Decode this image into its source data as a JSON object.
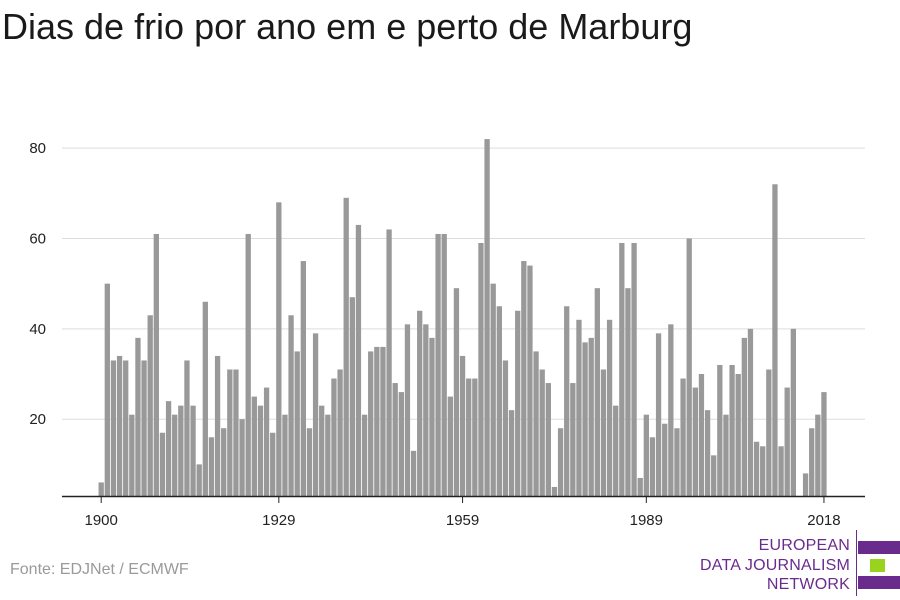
{
  "title": "Dias de frio por ano em e perto de Marburg",
  "source": "Fonte: EDJNet / ECMWF",
  "logo": {
    "line1": "EUROPEAN",
    "line2": "DATA JOURNALISM",
    "line3": "NETWORK",
    "colors": {
      "purple": "#6a2c8c",
      "green": "#9ad31f"
    }
  },
  "chart_data": {
    "type": "bar",
    "title": "Dias de frio por ano em e perto de Marburg",
    "xlabel": "",
    "ylabel": "",
    "x_start": 1900,
    "x_end": 2018,
    "x_ticks": [
      1900,
      1929,
      1959,
      1989,
      2018
    ],
    "y_ticks": [
      20,
      40,
      60,
      80
    ],
    "ylim": [
      3,
      85
    ],
    "grid": true,
    "bar_color": "#999999",
    "values": [
      6,
      50,
      33,
      34,
      33,
      21,
      38,
      33,
      43,
      61,
      17,
      24,
      21,
      23,
      33,
      23,
      10,
      46,
      16,
      34,
      18,
      31,
      31,
      20,
      61,
      25,
      23,
      27,
      17,
      68,
      21,
      43,
      35,
      55,
      18,
      39,
      23,
      21,
      29,
      31,
      69,
      47,
      63,
      21,
      35,
      36,
      36,
      62,
      28,
      26,
      41,
      13,
      44,
      41,
      38,
      61,
      61,
      25,
      49,
      34,
      29,
      29,
      59,
      82,
      50,
      45,
      33,
      22,
      44,
      55,
      54,
      35,
      31,
      28,
      5,
      18,
      45,
      28,
      42,
      37,
      38,
      49,
      31,
      42,
      23,
      59,
      49,
      59,
      7,
      21,
      16,
      39,
      19,
      41,
      18,
      29,
      60,
      27,
      30,
      22,
      12,
      32,
      21,
      32,
      30,
      38,
      40,
      15,
      14,
      31,
      72,
      14,
      27,
      40,
      3,
      8,
      18,
      21,
      26
    ]
  }
}
